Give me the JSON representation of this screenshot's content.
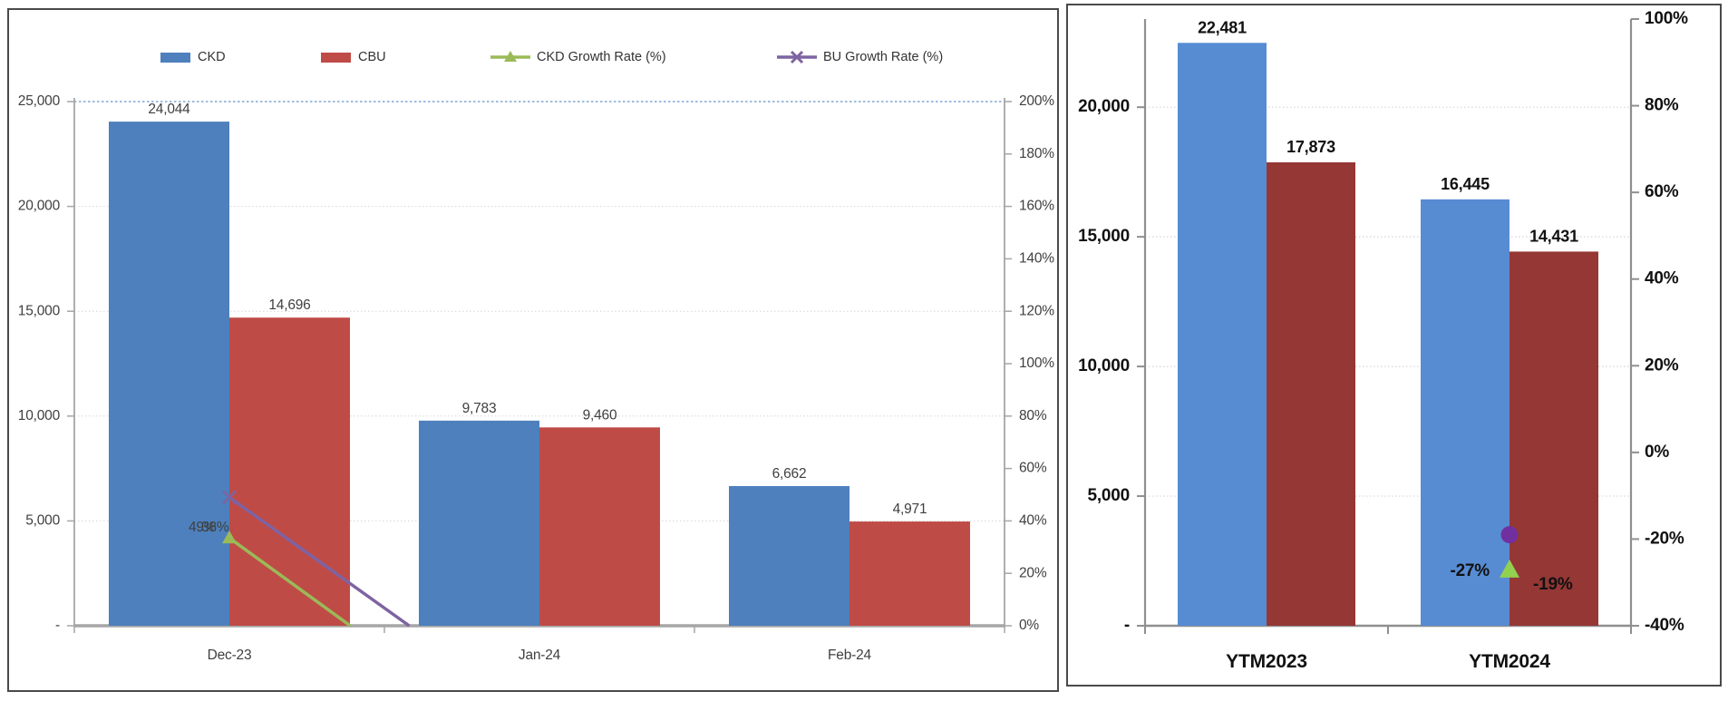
{
  "window": {
    "background": "#ffffff",
    "panel_border": "#4a4a4a"
  },
  "chart_data": [
    {
      "id": "monthly-ckd-cbu",
      "type": "bar",
      "subtype": "clustered-bars-with-growth-lines",
      "categories": [
        "Dec-23",
        "Jan-24",
        "Feb-24"
      ],
      "bar_series": [
        {
          "name": "CKD",
          "color": "#4D80BC",
          "values": [
            24044,
            9783,
            6662
          ],
          "labels": [
            "24,044",
            "9,783",
            "6,662"
          ]
        },
        {
          "name": "CBU",
          "color": "#BF4B47",
          "values": [
            14696,
            9460,
            4971
          ],
          "labels": [
            "14,696",
            "9,460",
            "4,971"
          ]
        }
      ],
      "line_series": [
        {
          "name": "CKD Growth Rate (%)",
          "color": "#9ABA58",
          "marker": "triangle",
          "points": [
            {
              "category": "Dec-23",
              "value_pct": 38,
              "label": "38%"
            }
          ],
          "line_clipped_at_zero_toward": "Jan-24",
          "zero_cross_fraction": 0.39
        },
        {
          "name": "BU Growth Rate (%)",
          "color": "#7E63A2",
          "marker": "x",
          "points": [
            {
              "category": "Dec-23",
              "value_pct": 49,
              "label": "49%"
            }
          ],
          "line_clipped_at_zero_toward": "Jan-24",
          "zero_cross_fraction": 0.58
        }
      ],
      "legend": [
        {
          "label": "CKD",
          "swatch": "rect",
          "color": "#4D80BC"
        },
        {
          "label": "CBU",
          "swatch": "rect",
          "color": "#BF4B47"
        },
        {
          "label": "CKD Growth Rate (%)",
          "swatch": "line-triangle",
          "color": "#9ABA58"
        },
        {
          "label": "BU Growth Rate (%)",
          "swatch": "line-x",
          "color": "#7E63A2"
        }
      ],
      "left_axis": {
        "min": 0,
        "max": 25000,
        "tick_labels": [
          "-",
          "5,000",
          "10,000",
          "15,000",
          "20,000",
          "25,000"
        ]
      },
      "right_axis": {
        "min": 0,
        "max": 200,
        "tick_labels": [
          "0%",
          "20%",
          "40%",
          "60%",
          "80%",
          "100%",
          "120%",
          "140%",
          "160%",
          "180%",
          "200%"
        ]
      },
      "grid": "dotted horizontal at each 5,000; top 25,000 line dotted blue",
      "legend_position": "top"
    },
    {
      "id": "ytm-comparison",
      "type": "bar",
      "subtype": "clustered-bars-with-point-markers",
      "categories": [
        "YTM2023",
        "YTM2024"
      ],
      "bar_series": [
        {
          "name": "CKD",
          "color": "#578CD3",
          "values": [
            22481,
            16445
          ],
          "labels": [
            "22,481",
            "16,445"
          ]
        },
        {
          "name": "CBU",
          "color": "#943735",
          "values": [
            17873,
            14431
          ],
          "labels": [
            "17,873",
            "14,431"
          ]
        }
      ],
      "point_markers": [
        {
          "shape": "triangle",
          "color": "#92D050",
          "category": "YTM2024",
          "value_pct": -27,
          "label": "-27%",
          "label_side": "left"
        },
        {
          "shape": "circle",
          "color": "#7030A0",
          "category": "YTM2024",
          "value_pct": -19,
          "label": "-19%",
          "label_side": "right"
        }
      ],
      "left_axis": {
        "min": 0,
        "max": 23400,
        "tick_labels": [
          "-",
          "5,000",
          "10,000",
          "15,000",
          "20,000"
        ]
      },
      "right_axis": {
        "min": -40,
        "max": 100,
        "tick_labels": [
          "-40%",
          "-20%",
          "0%",
          "20%",
          "40%",
          "60%",
          "80%",
          "100%"
        ]
      },
      "grid": "dotted horizontal at each 5,000",
      "legend_position": "none"
    }
  ],
  "style_tokens": {
    "grid_color": "#D6D6D6",
    "top_blue_gridline": "#7EA6D8",
    "axis_color_left_chart": "#A6A6A6",
    "axis_color_right_chart": "#8F8F8F",
    "text_color_left_chart": "#3F3F3F",
    "text_color_right_chart": "#111111"
  }
}
